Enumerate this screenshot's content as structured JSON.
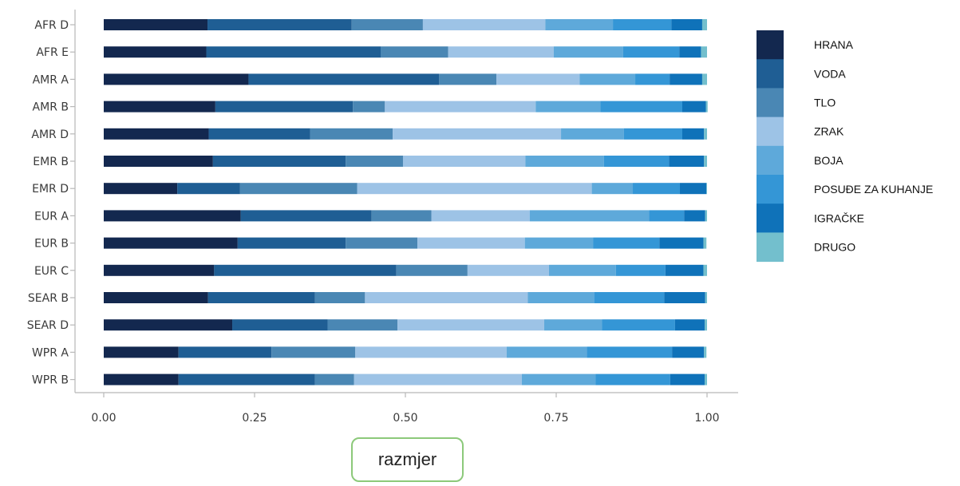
{
  "chart_data": {
    "type": "bar",
    "orientation": "horizontal",
    "stacked": true,
    "categories": [
      "AFR D",
      "AFR E",
      "AMR A",
      "AMR B",
      "AMR D",
      "EMR B",
      "EMR D",
      "EUR A",
      "EUR B",
      "EUR C",
      "SEAR B",
      "SEAR D",
      "WPR A",
      "WPR B"
    ],
    "series": [
      {
        "name": "HRANA",
        "color": "#13284f",
        "values": [
          0.172,
          0.17,
          0.24,
          0.185,
          0.174,
          0.181,
          0.122,
          0.227,
          0.222,
          0.183,
          0.173,
          0.213,
          0.124,
          0.124
        ]
      },
      {
        "name": "VODA",
        "color": "#1f5e94",
        "values": [
          0.239,
          0.289,
          0.316,
          0.228,
          0.168,
          0.22,
          0.104,
          0.217,
          0.179,
          0.302,
          0.177,
          0.158,
          0.154,
          0.226
        ]
      },
      {
        "name": "TLO",
        "color": "#4a87b4",
        "values": [
          0.118,
          0.112,
          0.095,
          0.053,
          0.137,
          0.095,
          0.194,
          0.099,
          0.119,
          0.118,
          0.083,
          0.116,
          0.139,
          0.065
        ]
      },
      {
        "name": "ZRAK",
        "color": "#9dc3e6",
        "values": [
          0.203,
          0.175,
          0.138,
          0.25,
          0.279,
          0.203,
          0.389,
          0.163,
          0.178,
          0.135,
          0.27,
          0.243,
          0.251,
          0.278
        ]
      },
      {
        "name": "BOJA",
        "color": "#5ea9da",
        "values": [
          0.112,
          0.115,
          0.092,
          0.107,
          0.104,
          0.13,
          0.068,
          0.198,
          0.113,
          0.111,
          0.11,
          0.096,
          0.133,
          0.122
        ]
      },
      {
        "name": "POSUĐE ZA KUHANJE",
        "color": "#3496d6",
        "values": [
          0.097,
          0.093,
          0.057,
          0.136,
          0.097,
          0.108,
          0.078,
          0.058,
          0.11,
          0.082,
          0.116,
          0.121,
          0.141,
          0.124
        ]
      },
      {
        "name": "IGRAČKE",
        "color": "#0f72b9",
        "values": [
          0.051,
          0.036,
          0.054,
          0.039,
          0.036,
          0.058,
          0.044,
          0.035,
          0.073,
          0.063,
          0.068,
          0.049,
          0.053,
          0.057
        ]
      },
      {
        "name": "DRUGO",
        "color": "#73bfcd",
        "values": [
          0.008,
          0.01,
          0.008,
          0.003,
          0.005,
          0.005,
          0.001,
          0.003,
          0.005,
          0.006,
          0.003,
          0.004,
          0.004,
          0.004
        ]
      }
    ],
    "x_ticks": [
      "0.00",
      "0.25",
      "0.50",
      "0.75",
      "1.00"
    ],
    "xlim": [
      0,
      1
    ],
    "xlabel": "razmjer",
    "ylabel": "",
    "title": "",
    "legend_position": "right",
    "grid": false
  }
}
